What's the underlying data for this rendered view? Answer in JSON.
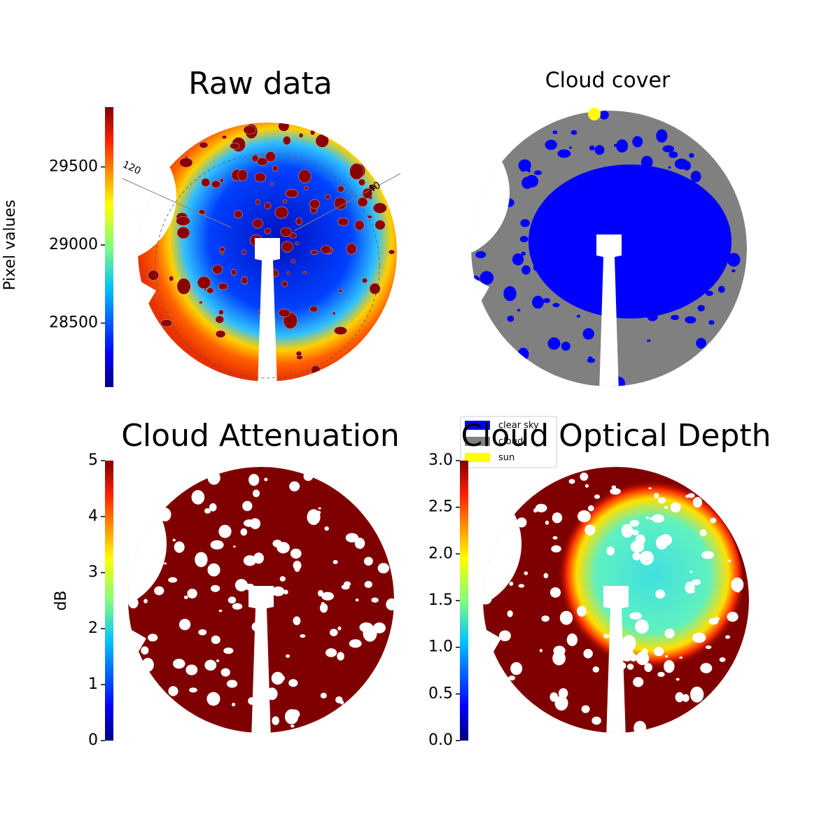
{
  "chart_data": [
    {
      "type": "image",
      "title": "Raw data",
      "colorbar_label": "Pixel values",
      "ylim": [
        28090,
        29883
      ],
      "yticks": [
        28500,
        29000,
        29500
      ],
      "colormap": "jet",
      "annotations": [
        "120",
        "40"
      ]
    },
    {
      "type": "image",
      "title": "Cloud cover",
      "legend": [
        {
          "name": "clear sky",
          "color": "#0000ff"
        },
        {
          "name": "cloud",
          "color": "#808080"
        },
        {
          "name": "sun",
          "color": "#ffff00"
        }
      ]
    },
    {
      "type": "image",
      "title": "Cloud Attenuation",
      "colorbar_label": "dB",
      "ylim": [
        0,
        5
      ],
      "yticks": [
        0,
        1,
        2,
        3,
        4,
        5
      ],
      "colormap": "jet"
    },
    {
      "type": "image",
      "title": "Cloud Optical Depth",
      "ylim": [
        0,
        3
      ],
      "yticks": [
        {
          "value": 0,
          "label": "0.0"
        },
        {
          "value": 0.5,
          "label": "0.5"
        },
        {
          "value": 1,
          "label": "1.0"
        },
        {
          "value": 1.5,
          "label": "1.5"
        },
        {
          "value": 2,
          "label": "2.0"
        },
        {
          "value": 2.5,
          "label": "2.5"
        },
        {
          "value": 3,
          "label": "3.0"
        }
      ],
      "colormap": "jet"
    }
  ]
}
